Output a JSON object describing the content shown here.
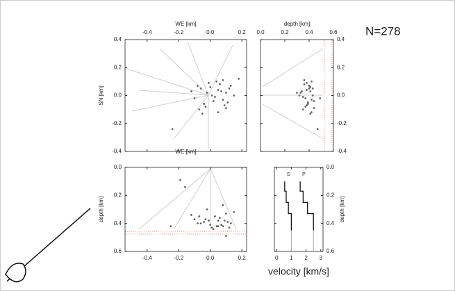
{
  "annotation": "N=278",
  "chart_data": [
    {
      "type": "scatter",
      "x_label": "WE [km]",
      "y_label": "SN [km]",
      "xlim": [
        -0.54,
        0.23
      ],
      "ylim": [
        -0.4,
        0.4
      ],
      "xticks": [
        -0.4,
        -0.2,
        {
          "value": 0,
          "label": "0.0"
        },
        0.2
      ],
      "yticks": [
        -0.4,
        -0.2,
        {
          "value": 0,
          "label": "0.0"
        },
        0.2,
        0.4
      ],
      "series": [
        {
          "color": "#666666",
          "x": [
            -0.02,
            0.03,
            0.05,
            -0.06,
            0.08,
            0.1,
            -0.1,
            0.0,
            0.12,
            -0.04,
            0.06,
            0.15,
            -0.08,
            0.02,
            0.09,
            -0.12,
            0.04,
            0.07,
            -0.03,
            0.11,
            0.01,
            -0.07,
            0.13,
            0.05,
            -0.01,
            0.18,
            -0.24,
            0.08,
            -0.05,
            0.1
          ],
          "values": [
            0.02,
            -0.01,
            0.04,
            0.05,
            -0.03,
            0.02,
            -0.02,
            0.06,
            0.05,
            -0.06,
            0.08,
            0.0,
            0.07,
            -0.04,
            -0.07,
            0.03,
            0.1,
            0.03,
            -0.08,
            -0.05,
            0.0,
            -0.1,
            0.07,
            -0.12,
            0.09,
            0.12,
            -0.24,
            0.11,
            -0.13,
            -0.09
          ]
        }
      ]
    },
    {
      "type": "scatter",
      "x_label": "depth [km]",
      "xlim": [
        0,
        0.6
      ],
      "ylim": [
        -0.4,
        0.4
      ],
      "xticks": [
        {
          "value": 0,
          "label": "0.0"
        },
        0.2,
        0.4,
        0.6
      ],
      "yticks": [
        -0.4,
        -0.2,
        {
          "value": 0,
          "label": "0.0"
        },
        0.2,
        0.4
      ],
      "series": [
        {
          "color": "#666666",
          "x": [
            0.3,
            0.35,
            0.38,
            0.4,
            0.42,
            0.33,
            0.37,
            0.41,
            0.43,
            0.39,
            0.36,
            0.32,
            0.4,
            0.44,
            0.38,
            0.34,
            0.42,
            0.41,
            0.37,
            0.39,
            0.43,
            0.35,
            0.4,
            0.42,
            0.38,
            0.49,
            0.47,
            0.36,
            0.41,
            0.44
          ],
          "values": [
            0.02,
            -0.01,
            0.04,
            0.05,
            -0.03,
            0.02,
            -0.02,
            0.06,
            0.05,
            -0.06,
            0.08,
            0.0,
            0.07,
            -0.04,
            -0.07,
            0.03,
            0.1,
            0.03,
            -0.08,
            -0.05,
            0.0,
            -0.1,
            0.07,
            -0.12,
            0.09,
            -0.02,
            -0.24,
            0.11,
            -0.13,
            -0.09
          ]
        }
      ]
    },
    {
      "type": "scatter",
      "x_label": "WE [km]",
      "y_label": "depth [km]",
      "y_inverted": true,
      "xlim": [
        -0.54,
        0.23
      ],
      "ylim": [
        0,
        0.6
      ],
      "xticks": [
        -0.4,
        -0.2,
        {
          "value": 0,
          "label": "0.0"
        },
        0.2
      ],
      "yticks": [
        {
          "value": 0,
          "label": "0.0"
        },
        0.2,
        0.4,
        0.6
      ],
      "series": [
        {
          "color": "#666666",
          "x": [
            -0.02,
            0.03,
            0.05,
            -0.06,
            0.08,
            0.1,
            -0.1,
            0.0,
            0.12,
            -0.04,
            0.06,
            0.15,
            -0.08,
            0.02,
            0.09,
            -0.12,
            0.04,
            0.07,
            -0.03,
            0.11,
            0.01,
            -0.07,
            0.13,
            0.05,
            -0.01,
            -0.19,
            -0.16,
            0.08,
            0.1,
            -0.25
          ],
          "values": [
            0.3,
            0.35,
            0.38,
            0.4,
            0.42,
            0.33,
            0.37,
            0.41,
            0.43,
            0.39,
            0.36,
            0.32,
            0.4,
            0.44,
            0.38,
            0.34,
            0.42,
            0.41,
            0.37,
            0.39,
            0.43,
            0.35,
            0.4,
            0.42,
            0.38,
            0.09,
            0.14,
            0.27,
            0.49,
            0.42
          ]
        }
      ]
    },
    {
      "type": "line",
      "x_label": "velocity [km/s]",
      "y_label": "depth [km]",
      "y_inverted": true,
      "xlim": [
        -0.15,
        3.15
      ],
      "ylim": [
        0,
        0.6
      ],
      "xticks": [
        0,
        1,
        2,
        3
      ],
      "yticks": [
        {
          "value": 0,
          "label": "0.0"
        },
        0.2,
        0.4,
        0.6
      ],
      "series": [
        {
          "name": "S",
          "color": "#111111",
          "x": [
            0.55,
            0.55,
            0.65,
            0.65,
            0.8,
            0.8,
            1.0,
            1.0
          ],
          "values": [
            0.1,
            0.17,
            0.17,
            0.25,
            0.25,
            0.33,
            0.33,
            0.45
          ]
        },
        {
          "name": "P",
          "color": "#111111",
          "x": [
            1.6,
            1.6,
            1.8,
            1.8,
            2.1,
            2.1,
            2.5,
            2.5
          ],
          "values": [
            0.1,
            0.17,
            0.17,
            0.25,
            0.25,
            0.33,
            0.33,
            0.45
          ]
        }
      ]
    }
  ]
}
